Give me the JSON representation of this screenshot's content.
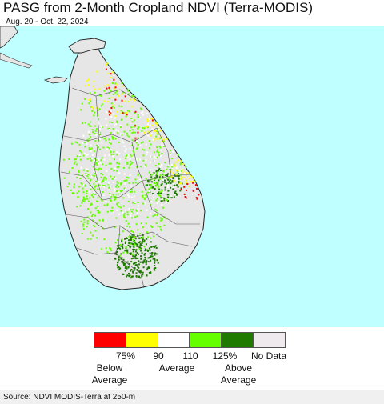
{
  "title": "PASG from 2-Month Cropland NDVI (Terra-MODIS)",
  "date_range": "Aug. 20 - Oct. 22, 2024",
  "colors": {
    "ocean": "#c0ffff",
    "land": "#e6e6e6",
    "boundary": "#555555",
    "below_75": "#ff0000",
    "range_75_90": "#ffff00",
    "range_90_110": "#ffffff",
    "range_110_125": "#66ff00",
    "above_125": "#1f7a00",
    "no_data": "#eeeaee"
  },
  "legend": {
    "ticks": [
      "75%",
      "90",
      "110",
      "125%",
      "No Data"
    ],
    "below_line1": "Below",
    "below_line2": "Average",
    "average": "Average",
    "above_line1": "Above",
    "above_line2": "Average"
  },
  "source": "Source: NDVI MODIS-Terra at 250-m"
}
